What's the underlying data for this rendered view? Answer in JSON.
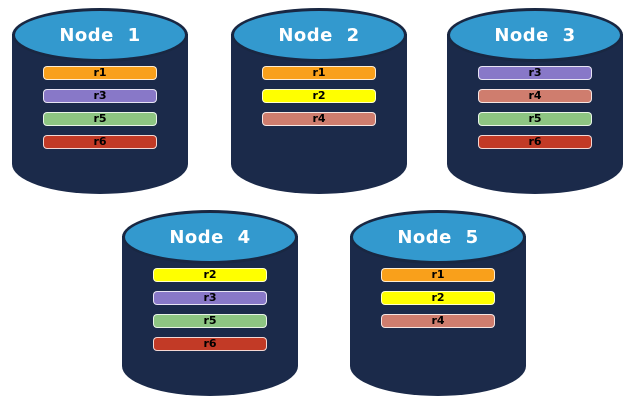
{
  "canvas": {
    "background": "#FFFFFF"
  },
  "cylinder": {
    "body_color": "#1B2A4A",
    "top_color": "#3399CE",
    "top_border_color": "#192742",
    "label_color": "#FFFFFF"
  },
  "bar_text_color": "#000000",
  "replica_colors": {
    "r1": "#F9A01B",
    "r2": "#FFFF00",
    "r3": "#8878C8",
    "r4": "#CF7D6E",
    "r5": "#8DC582",
    "r6": "#C23A26"
  },
  "nodes": [
    {
      "label": "Node 1",
      "replicas": [
        "r1",
        "r3",
        "r5",
        "r6"
      ]
    },
    {
      "label": "Node 2",
      "replicas": [
        "r1",
        "r2",
        "r4"
      ]
    },
    {
      "label": "Node 3",
      "replicas": [
        "r3",
        "r4",
        "r5",
        "r6"
      ]
    },
    {
      "label": "Node 4",
      "replicas": [
        "r2",
        "r3",
        "r5",
        "r6"
      ]
    },
    {
      "label": "Node 5",
      "replicas": [
        "r1",
        "r2",
        "r4"
      ]
    }
  ]
}
